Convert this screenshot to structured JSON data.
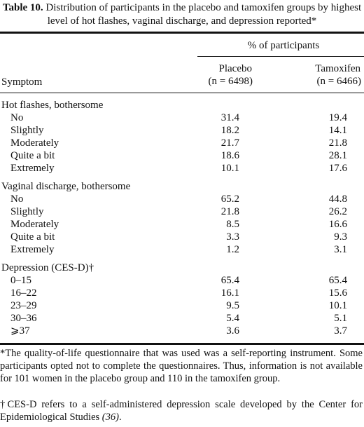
{
  "caption": {
    "label": "Table 10.",
    "text": " Distribution of participants in the placebo and tamoxifen groups by highest level of hot flashes, vaginal discharge, and depression reported*"
  },
  "header": {
    "spanner": "% of participants",
    "symptom": "Symptom",
    "placebo": "Placebo",
    "placebo_n": "(n = 6498)",
    "tamoxifen": "Tamoxifen",
    "tamoxifen_n": "(n = 6466)"
  },
  "sections": [
    {
      "title": "Hot flashes, bothersome",
      "rows": [
        {
          "label": "No",
          "placebo": "31.4",
          "tamoxifen": "19.4"
        },
        {
          "label": "Slightly",
          "placebo": "18.2",
          "tamoxifen": "14.1"
        },
        {
          "label": "Moderately",
          "placebo": "21.7",
          "tamoxifen": "21.8"
        },
        {
          "label": "Quite a bit",
          "placebo": "18.6",
          "tamoxifen": "28.1"
        },
        {
          "label": "Extremely",
          "placebo": "10.1",
          "tamoxifen": "17.6"
        }
      ]
    },
    {
      "title": "Vaginal discharge, bothersome",
      "rows": [
        {
          "label": "No",
          "placebo": "65.2",
          "tamoxifen": "44.8"
        },
        {
          "label": "Slightly",
          "placebo": "21.8",
          "tamoxifen": "26.2"
        },
        {
          "label": "Moderately",
          "placebo": "8.5",
          "tamoxifen": "16.6"
        },
        {
          "label": "Quite a bit",
          "placebo": "3.3",
          "tamoxifen": "9.3"
        },
        {
          "label": "Extremely",
          "placebo": "1.2",
          "tamoxifen": "3.1"
        }
      ]
    },
    {
      "title": "Depression (CES-D)†",
      "rows": [
        {
          "label": "0–15",
          "placebo": "65.4",
          "tamoxifen": "65.4"
        },
        {
          "label": "16–22",
          "placebo": "16.1",
          "tamoxifen": "15.6"
        },
        {
          "label": "23–29",
          "placebo": "9.5",
          "tamoxifen": "10.1"
        },
        {
          "label": "30–36",
          "placebo": "5.4",
          "tamoxifen": "5.1"
        },
        {
          "label": "⩾37",
          "placebo": "3.6",
          "tamoxifen": "3.7"
        }
      ]
    }
  ],
  "footnotes": {
    "note1": "*The quality-of-life questionnaire that was used was a self-reporting instrument. Some participants opted not to complete the questionnaires. Thus, information is not available for 101 women in the placebo group and 110 in the tamoxifen group.",
    "note2_text": "†CES-D refers to a self-administered depression scale developed by the Center for Epidemiological Studies ",
    "note2_ref": "(36)",
    "note2_end": "."
  }
}
